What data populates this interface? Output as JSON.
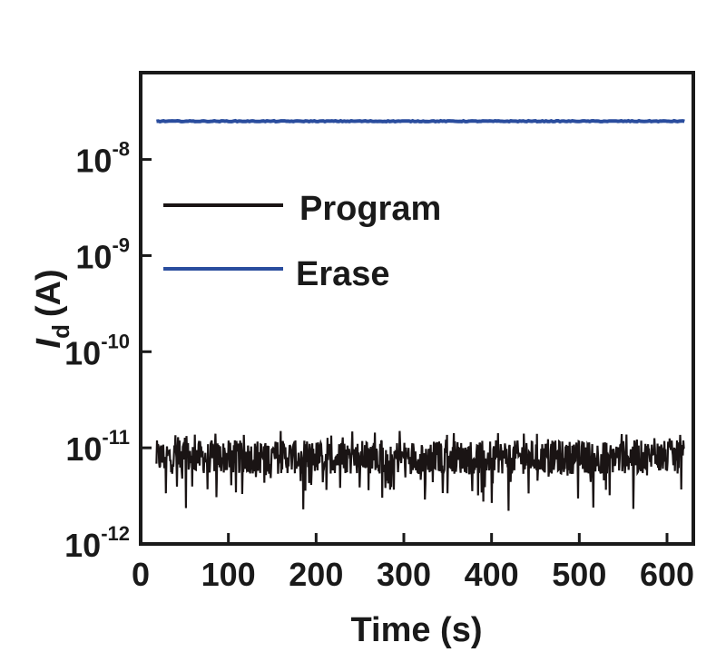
{
  "chart_data": {
    "type": "line",
    "xlabel": "Time (s)",
    "ylabel": {
      "symbol": "I",
      "subscript": "d",
      "unit": "(A)"
    },
    "xlim": [
      0,
      630
    ],
    "ylim": [
      1e-12,
      8e-08
    ],
    "yscale": "log",
    "xticks": [
      0,
      100,
      200,
      300,
      400,
      500,
      600
    ],
    "yticks": [
      {
        "value": 1e-08,
        "base": "10",
        "exp": "-8"
      },
      {
        "value": 1e-09,
        "base": "10",
        "exp": "-9"
      },
      {
        "value": 1e-10,
        "base": "10",
        "exp": "-10"
      },
      {
        "value": 1e-11,
        "base": "10",
        "exp": "-11"
      },
      {
        "value": 1e-12,
        "base": "10",
        "exp": "-12"
      }
    ],
    "grid": false,
    "legend_position": "upper-left",
    "series": [
      {
        "name": "Program",
        "color": "#1a1414",
        "x_range": [
          18,
          620
        ],
        "mean": 8e-12,
        "min": 2.2e-12,
        "max": 1.5e-11
      },
      {
        "name": "Erase",
        "color": "#2a4d9e",
        "x_range": [
          18,
          620
        ],
        "mean": 2.5e-08
      }
    ]
  }
}
